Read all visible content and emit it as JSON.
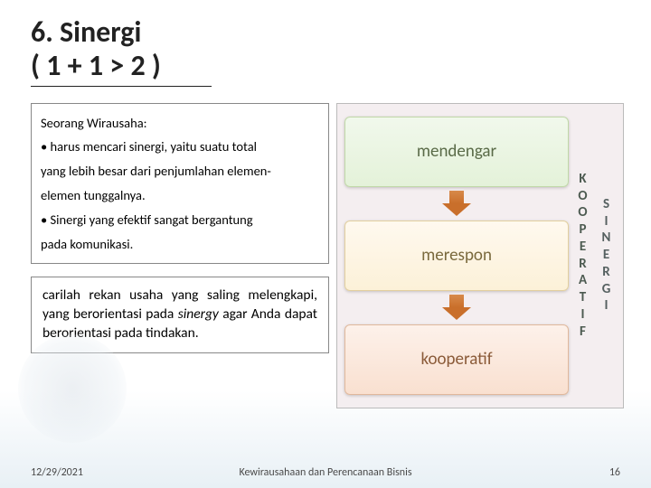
{
  "title": {
    "line1": "6. Sinergi",
    "line2": "( 1 + 1 > 2 )"
  },
  "box1": {
    "intro": "Seorang Wirausaha:",
    "b1": "• harus mencari sinergi, yaitu suatu total",
    "b2": "yang lebih besar dari penjumlahan elemen-",
    "b3": "elemen tunggalnya.",
    "b4": "• Sinergi yang efektif sangat bergantung",
    "b5": "pada komunikasi."
  },
  "box2": {
    "t1": "carilah rekan usaha yang saling melengkapi, yang berorientasi pada ",
    "em": "sinergy",
    "t2": " agar Anda dapat berorientasi pada tindakan."
  },
  "flow": {
    "a": "mendengar",
    "b": "merespon",
    "c": "kooperatif"
  },
  "vlabels": {
    "left": "KOOPERATIF",
    "right": "SINERGI"
  },
  "footer": {
    "date": "12/29/2021",
    "center": "Kewirausahaan dan Perencanaan Bisnis",
    "page": "16"
  },
  "colors": {
    "fb1": "#e4f2d9",
    "fb2": "#fcf1d8",
    "fb3": "#f9e0d0",
    "arrow": "#c96f2b",
    "panel_bg": "#f4eef0"
  }
}
